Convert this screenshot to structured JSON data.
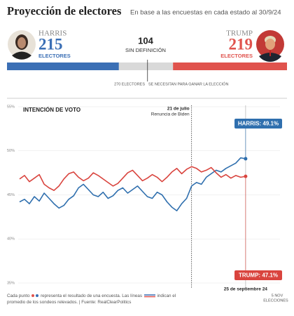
{
  "title": "Proyección de electores",
  "subtitle": "En base a las encuestas en cada estado al 30/9/24",
  "note": [
    "Cada punto",
    "representa el resultado de una encuesta. Las líneas",
    "indican el",
    "promedio de los sondeos relevados. | Fuente: RealClearPolitics"
  ],
  "chart_data": [
    {
      "type": "bar",
      "orientation": "horizontal",
      "stacked": true,
      "unit_label": "ELECTORES",
      "xlim": [
        0,
        538
      ],
      "series": [
        {
          "name": "HARRIS",
          "color": "#3b6fb5",
          "values": [
            215
          ]
        },
        {
          "name": "SIN DEFINICIÓN",
          "color": "#d9d9d9",
          "values": [
            104
          ]
        },
        {
          "name": "TRUMP",
          "color": "#e0534d",
          "values": [
            219
          ]
        }
      ],
      "threshold": 270,
      "threshold_label": "270 ELECTORES",
      "threshold_note": "SE NECESITAN PARA GANAR LA ELECCIÓN"
    },
    {
      "type": "line",
      "title": "INTENCIÓN DE VOTO",
      "categories": [
        null,
        null,
        null,
        null,
        null,
        null,
        null,
        null,
        null,
        null,
        null,
        null,
        null,
        null,
        null,
        null,
        null,
        null,
        null,
        null,
        null,
        null,
        null,
        null,
        null,
        null,
        null,
        null,
        null,
        null,
        null,
        null,
        null,
        null,
        null,
        "21 de julio",
        null,
        null,
        null,
        null,
        null,
        null,
        null,
        null,
        null,
        null,
        "25 de septiembre 24",
        null,
        null,
        null,
        null,
        null,
        null,
        "5 NOV"
      ],
      "event_note": "Renuncia de Biden",
      "end_note": "ELECCIONES",
      "ylim": [
        35,
        55
      ],
      "yticks": [
        {
          "value": 35,
          "label": "35%"
        },
        {
          "value": 40,
          "label": "40%"
        },
        {
          "value": 45,
          "label": "45%"
        },
        {
          "value": 50,
          "label": "50%"
        },
        {
          "value": 55,
          "label": "55%"
        }
      ],
      "grid": true,
      "series": [
        {
          "name": "HARRIS",
          "color": "#2f6fae",
          "end_label": "HARRIS: 49.1%",
          "values": [
            44.2,
            44.5,
            44.0,
            44.8,
            44.3,
            45.2,
            44.6,
            44.0,
            43.5,
            43.8,
            44.5,
            44.9,
            45.8,
            46.2,
            45.6,
            45.0,
            44.8,
            45.3,
            44.6,
            44.9,
            45.5,
            45.8,
            45.2,
            45.6,
            46.0,
            45.4,
            44.8,
            44.6,
            45.3,
            45.0,
            44.2,
            43.6,
            43.2,
            44.0,
            44.6,
            46.0,
            46.4,
            46.2,
            47.0,
            47.4,
            47.8,
            47.6,
            48.0,
            48.3,
            48.6,
            49.2,
            49.1,
            null,
            null,
            null,
            null,
            null,
            null,
            null
          ]
        },
        {
          "name": "TRUMP",
          "color": "#d9443e",
          "end_label": "TRUMP: 47.1%",
          "values": [
            46.8,
            47.2,
            46.5,
            46.9,
            47.3,
            46.2,
            45.8,
            45.5,
            46.0,
            46.8,
            47.4,
            47.6,
            47.0,
            46.6,
            46.9,
            47.5,
            47.2,
            46.8,
            46.4,
            46.0,
            46.3,
            46.9,
            47.5,
            47.8,
            47.2,
            46.6,
            46.9,
            47.3,
            47.0,
            46.5,
            47.0,
            47.6,
            48.0,
            47.4,
            47.9,
            48.2,
            48.0,
            47.6,
            47.8,
            48.1,
            47.5,
            47.0,
            47.3,
            46.9,
            47.2,
            47.0,
            47.1,
            null,
            null,
            null,
            null,
            null,
            null,
            null
          ]
        }
      ]
    }
  ]
}
